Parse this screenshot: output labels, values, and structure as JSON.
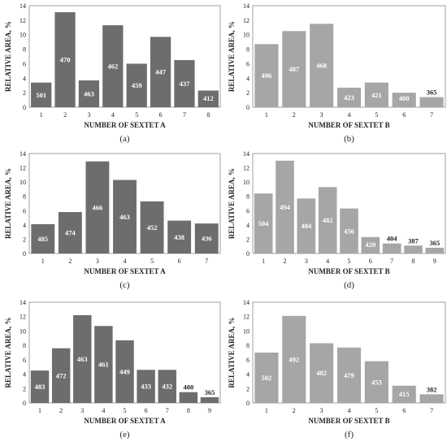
{
  "chart_data": [
    {
      "type": "bar",
      "panel_label": "(a)",
      "xlabel": "NUMBER OF SEXTET  A",
      "ylabel": "RELATIVE  AREA,  %",
      "ylim": [
        0,
        14
      ],
      "yticks": [
        "0",
        "2",
        "4",
        "6",
        "8",
        "10",
        "12",
        "14"
      ],
      "categories": [
        "1",
        "2",
        "3",
        "4",
        "5",
        "6",
        "7",
        "8"
      ],
      "values": [
        3.4,
        13.1,
        3.7,
        11.3,
        6.0,
        9.7,
        6.5,
        2.3
      ],
      "data_labels": [
        "501",
        "470",
        "463",
        "462",
        "459",
        "447",
        "437",
        "412"
      ],
      "bar_color": "#6d6d6d"
    },
    {
      "type": "bar",
      "panel_label": "(b)",
      "xlabel": "NUMBER OF SEXTET  B",
      "ylabel": "RELATIVE AREA, %",
      "ylim": [
        0,
        14
      ],
      "yticks": [
        "0",
        "2",
        "4",
        "6",
        "8",
        "10",
        "12",
        "14"
      ],
      "categories": [
        "1",
        "2",
        "3",
        "4",
        "5",
        "6",
        "7"
      ],
      "values": [
        8.7,
        10.5,
        11.5,
        2.7,
        3.4,
        2.0,
        1.4
      ],
      "data_labels": [
        "496",
        "487",
        "468",
        "423",
        "421",
        "400",
        "365"
      ],
      "bar_color": "#a6a6a6"
    },
    {
      "type": "bar",
      "panel_label": "(c)",
      "xlabel": "NUMBER OF SEXTET  A",
      "ylabel": "RELATIVE AREA, %",
      "ylim": [
        0,
        14
      ],
      "yticks": [
        "0",
        "2",
        "4",
        "6",
        "8",
        "10",
        "12",
        "14"
      ],
      "categories": [
        "1",
        "2",
        "3",
        "4",
        "5",
        "6",
        "7"
      ],
      "values": [
        4.1,
        5.8,
        12.9,
        10.3,
        7.3,
        4.6,
        4.2
      ],
      "data_labels": [
        "485",
        "474",
        "466",
        "463",
        "452",
        "438",
        "436"
      ],
      "bar_color": "#6d6d6d"
    },
    {
      "type": "bar",
      "panel_label": "(d)",
      "xlabel": "NUMBER OF SEXTET  B",
      "ylabel": "RELATIVE AREA, %",
      "ylim": [
        0,
        14
      ],
      "yticks": [
        "0",
        "2",
        "4",
        "6",
        "8",
        "10",
        "12",
        "14"
      ],
      "categories": [
        "1",
        "2",
        "3",
        "4",
        "5",
        "6",
        "7",
        "8",
        "9"
      ],
      "values": [
        8.4,
        13.0,
        7.7,
        9.3,
        6.3,
        2.3,
        1.4,
        1.1,
        0.8
      ],
      "data_labels": [
        "504",
        "494",
        "484",
        "482",
        "456",
        "420",
        "404",
        "387",
        "365"
      ],
      "bar_color": "#a6a6a6"
    },
    {
      "type": "bar",
      "panel_label": "(e)",
      "xlabel": "NUMBER OF SEXTET  A",
      "ylabel": "RELATIVE AREA, %",
      "ylim": [
        0,
        14
      ],
      "yticks": [
        "0",
        "2",
        "4",
        "6",
        "8",
        "10",
        "12",
        "14"
      ],
      "categories": [
        "1",
        "2",
        "3",
        "4",
        "5",
        "6",
        "7",
        "8",
        "9"
      ],
      "values": [
        4.5,
        7.6,
        12.2,
        10.7,
        8.7,
        4.6,
        4.6,
        1.5,
        0.8
      ],
      "data_labels": [
        "483",
        "472",
        "463",
        "461",
        "449",
        "433",
        "432",
        "400",
        "365"
      ],
      "bar_color": "#6d6d6d"
    },
    {
      "type": "bar",
      "panel_label": "(f)",
      "xlabel": "NUMBER OF SEXTET  B",
      "ylabel": "RELATIVE AREA, %",
      "ylim": [
        0,
        14
      ],
      "yticks": [
        "0",
        "2",
        "4",
        "6",
        "8",
        "10",
        "12",
        "14"
      ],
      "categories": [
        "1",
        "2",
        "3",
        "4",
        "5",
        "6",
        "7"
      ],
      "values": [
        7.0,
        12.1,
        8.3,
        7.7,
        5.8,
        2.4,
        1.2
      ],
      "data_labels": [
        "502",
        "492",
        "482",
        "479",
        "453",
        "415",
        "382"
      ],
      "bar_color": "#a6a6a6"
    }
  ]
}
